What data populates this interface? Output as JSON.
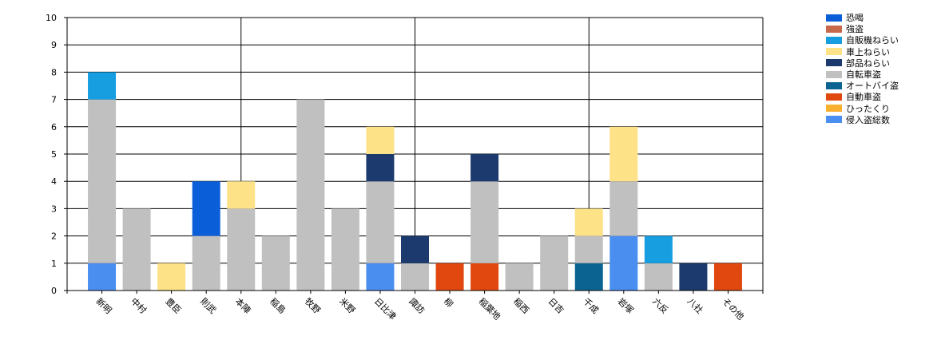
{
  "chart_data": {
    "type": "bar",
    "stacked": true,
    "categories": [
      "新明",
      "中村",
      "豊臣",
      "則武",
      "本陣",
      "稲島",
      "牧野",
      "米野",
      "日比津",
      "諏訪",
      "柳",
      "稲葉地",
      "稲西",
      "日吉",
      "千成",
      "岩塚",
      "六反",
      "八社",
      "その他"
    ],
    "ylim": [
      0,
      10
    ],
    "yticks": [
      0,
      1,
      2,
      3,
      4,
      5,
      6,
      7,
      8,
      9,
      10
    ],
    "grid": true,
    "legend_position": "top-right",
    "series": [
      {
        "name": "恐喝",
        "color": "#0a5fd8",
        "values": [
          0,
          0,
          0,
          2,
          0,
          0,
          0,
          0,
          0,
          0,
          0,
          0,
          0,
          0,
          0,
          0,
          0,
          0,
          0
        ]
      },
      {
        "name": "強盗",
        "color": "#c76a4b",
        "values": [
          0,
          0,
          0,
          0,
          0,
          0,
          0,
          0,
          0,
          0,
          0,
          0,
          0,
          0,
          0,
          0,
          0,
          0,
          0
        ]
      },
      {
        "name": "自販機ねらい",
        "color": "#169ee0",
        "values": [
          1,
          0,
          0,
          0,
          0,
          0,
          0,
          0,
          0,
          0,
          0,
          0,
          0,
          0,
          0,
          0,
          1,
          0,
          0
        ]
      },
      {
        "name": "車上ねらい",
        "color": "#fde287",
        "values": [
          0,
          0,
          1,
          0,
          1,
          0,
          0,
          0,
          1,
          0,
          0,
          0,
          0,
          0,
          1,
          2,
          0,
          0,
          0
        ]
      },
      {
        "name": "部品ねらい",
        "color": "#1c3a6e",
        "values": [
          0,
          0,
          0,
          0,
          0,
          0,
          0,
          0,
          1,
          1,
          0,
          1,
          0,
          0,
          0,
          0,
          0,
          1,
          0
        ]
      },
      {
        "name": "自転車盗",
        "color": "#c0c0c0",
        "values": [
          6,
          3,
          0,
          2,
          3,
          2,
          7,
          3,
          3,
          1,
          0,
          3,
          1,
          2,
          1,
          2,
          1,
          0,
          0
        ]
      },
      {
        "name": "オートバイ盗",
        "color": "#0a6390",
        "values": [
          0,
          0,
          0,
          0,
          0,
          0,
          0,
          0,
          0,
          0,
          0,
          0,
          0,
          0,
          1,
          0,
          0,
          0,
          0
        ]
      },
      {
        "name": "自動車盗",
        "color": "#e04810",
        "values": [
          0,
          0,
          0,
          0,
          0,
          0,
          0,
          0,
          0,
          0,
          1,
          1,
          0,
          0,
          0,
          0,
          0,
          0,
          1
        ]
      },
      {
        "name": "ひったくり",
        "color": "#f7b030",
        "values": [
          0,
          0,
          0,
          0,
          0,
          0,
          0,
          0,
          0,
          0,
          0,
          0,
          0,
          0,
          0,
          0,
          0,
          0,
          0
        ]
      },
      {
        "name": "侵入盗総数",
        "color": "#4a8ef0",
        "values": [
          1,
          0,
          0,
          0,
          0,
          0,
          0,
          0,
          1,
          0,
          0,
          0,
          0,
          0,
          0,
          2,
          0,
          0,
          0
        ]
      }
    ]
  }
}
